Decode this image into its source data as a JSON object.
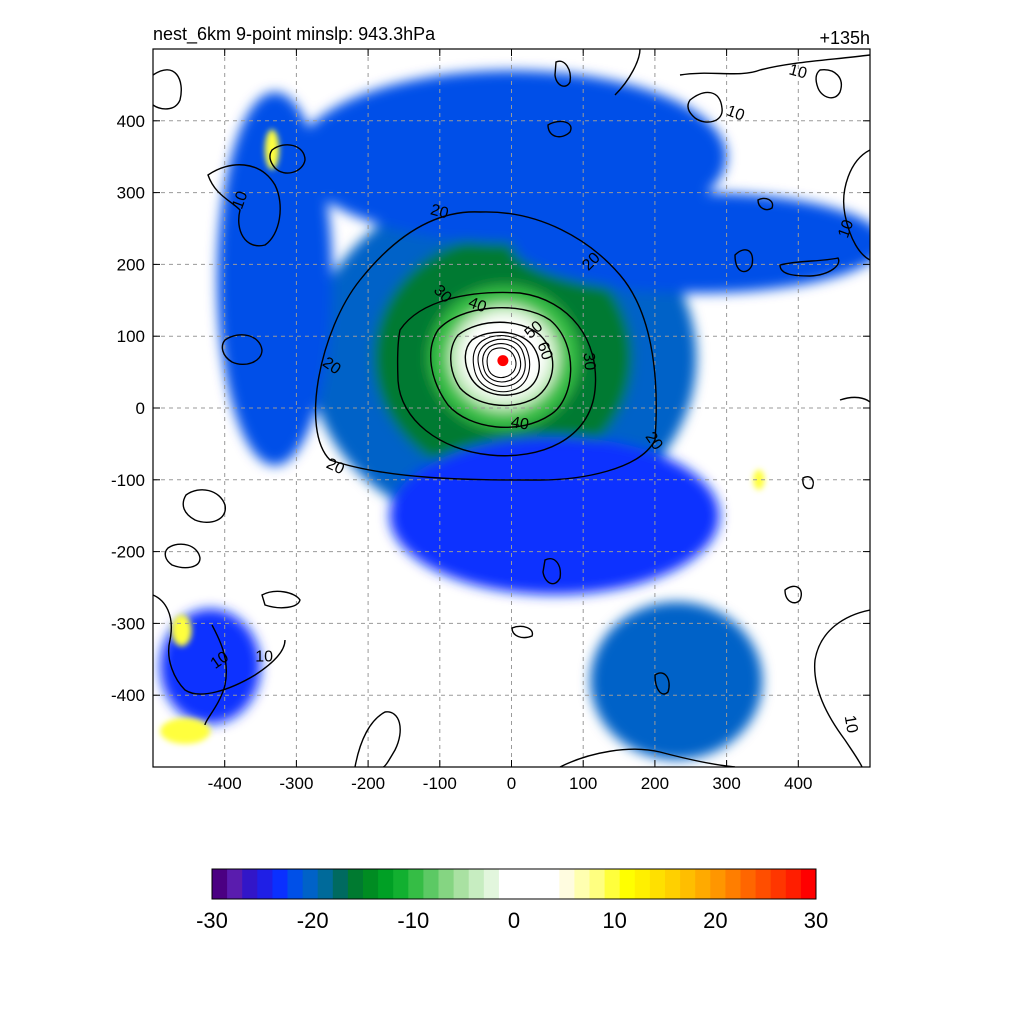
{
  "chart_data": {
    "type": "heatmap",
    "title_left": "nest_6km  9-point minslp: 943.3hPa",
    "title_right": "+135h",
    "xlim": [
      -500,
      500
    ],
    "ylim": [
      -500,
      500
    ],
    "x_ticks": [
      -400,
      -300,
      -200,
      -100,
      0,
      100,
      200,
      300,
      400
    ],
    "y_ticks": [
      400,
      300,
      200,
      100,
      0,
      -100,
      -200,
      -300,
      -400
    ],
    "grid": true,
    "center_marker": {
      "x": -12,
      "y": 66,
      "color": "#ff0000"
    },
    "contour_levels": [
      10,
      20,
      30,
      40,
      50,
      60
    ],
    "contour_labels": [
      {
        "text": "10",
        "x": -380,
        "y": 290,
        "rot": 70
      },
      {
        "text": "10",
        "x": 400,
        "y": 470,
        "rot": -15
      },
      {
        "text": "10",
        "x": 313,
        "y": 412,
        "rot": -20
      },
      {
        "text": "10",
        "x": 465,
        "y": 250,
        "rot": 70
      },
      {
        "text": "10",
        "x": -408,
        "y": -350,
        "rot": 35
      },
      {
        "text": "10",
        "x": -345,
        "y": -345,
        "rot": 0
      },
      {
        "text": "10",
        "x": 475,
        "y": -440,
        "rot": -80
      },
      {
        "text": "20",
        "x": -100,
        "y": 275,
        "rot": -15
      },
      {
        "text": "20",
        "x": 110,
        "y": 205,
        "rot": 45
      },
      {
        "text": "20",
        "x": -250,
        "y": 60,
        "rot": -35
      },
      {
        "text": "20",
        "x": 200,
        "y": -45,
        "rot": -55
      },
      {
        "text": "20",
        "x": -245,
        "y": -80,
        "rot": -25
      },
      {
        "text": "30",
        "x": -95,
        "y": 160,
        "rot": -45
      },
      {
        "text": "30",
        "x": 110,
        "y": 65,
        "rot": -85
      },
      {
        "text": "40",
        "x": -47,
        "y": 145,
        "rot": -20
      },
      {
        "text": "40",
        "x": 12,
        "y": -20,
        "rot": -10
      },
      {
        "text": "50",
        "x": 30,
        "y": 110,
        "rot": 40
      },
      {
        "text": "60",
        "x": 48,
        "y": 80,
        "rot": -70
      }
    ],
    "colorbar": {
      "min": -30,
      "max": 30,
      "tick_labels": [
        "-30",
        "-20",
        "-10",
        "0",
        "10",
        "20",
        "30"
      ],
      "colors": [
        "#4b0082",
        "#5a1cae",
        "#3216c8",
        "#1f1fe6",
        "#0a30ff",
        "#0050e8",
        "#0062c8",
        "#006a9a",
        "#006a60",
        "#007a30",
        "#008c22",
        "#00a025",
        "#12b030",
        "#35bd45",
        "#5cc964",
        "#85d582",
        "#a9e1a2",
        "#c7edc1",
        "#e2f6dd",
        "#ffffff",
        "#ffffff",
        "#ffffff",
        "#ffffff",
        "#fffce0",
        "#ffffb0",
        "#ffff80",
        "#ffff3c",
        "#ffff00",
        "#fff000",
        "#ffe000",
        "#ffd000",
        "#ffbe00",
        "#ffaa00",
        "#ff9600",
        "#ff7e00",
        "#ff6600",
        "#ff4e00",
        "#ff3600",
        "#ff1e00",
        "#ff0000"
      ]
    },
    "shading_features": [
      {
        "cx": -12,
        "cy": 70,
        "rx": 270,
        "ry": 240,
        "level": 6
      },
      {
        "cx": -12,
        "cy": 70,
        "rx": 180,
        "ry": 170,
        "level": 9
      },
      {
        "cx": -10,
        "cy": 70,
        "rx": 105,
        "ry": 100,
        "level": 13
      },
      {
        "cx": -10,
        "cy": 70,
        "rx": 78,
        "ry": 75,
        "level": 17
      },
      {
        "cx": -10,
        "cy": 72,
        "rx": 60,
        "ry": 58,
        "level": 19
      },
      {
        "cx": 0,
        "cy": 350,
        "rx": 300,
        "ry": 120,
        "level": 5
      },
      {
        "cx": 260,
        "cy": 230,
        "rx": 260,
        "ry": 70,
        "level": 5
      },
      {
        "cx": -330,
        "cy": 180,
        "rx": 80,
        "ry": 260,
        "level": 5
      },
      {
        "cx": 230,
        "cy": -380,
        "rx": 120,
        "ry": 110,
        "level": 6
      },
      {
        "cx": 60,
        "cy": -150,
        "rx": 230,
        "ry": 110,
        "level": 4
      },
      {
        "cx": -420,
        "cy": -360,
        "rx": 70,
        "ry": 80,
        "level": 4
      }
    ],
    "positive_patches": [
      {
        "cx": -334,
        "cy": 360,
        "rx": 10,
        "ry": 28
      },
      {
        "cx": -460,
        "cy": -310,
        "rx": 14,
        "ry": 22
      },
      {
        "cx": -455,
        "cy": -450,
        "rx": 35,
        "ry": 18
      },
      {
        "cx": 345,
        "cy": -100,
        "rx": 8,
        "ry": 14
      }
    ]
  }
}
